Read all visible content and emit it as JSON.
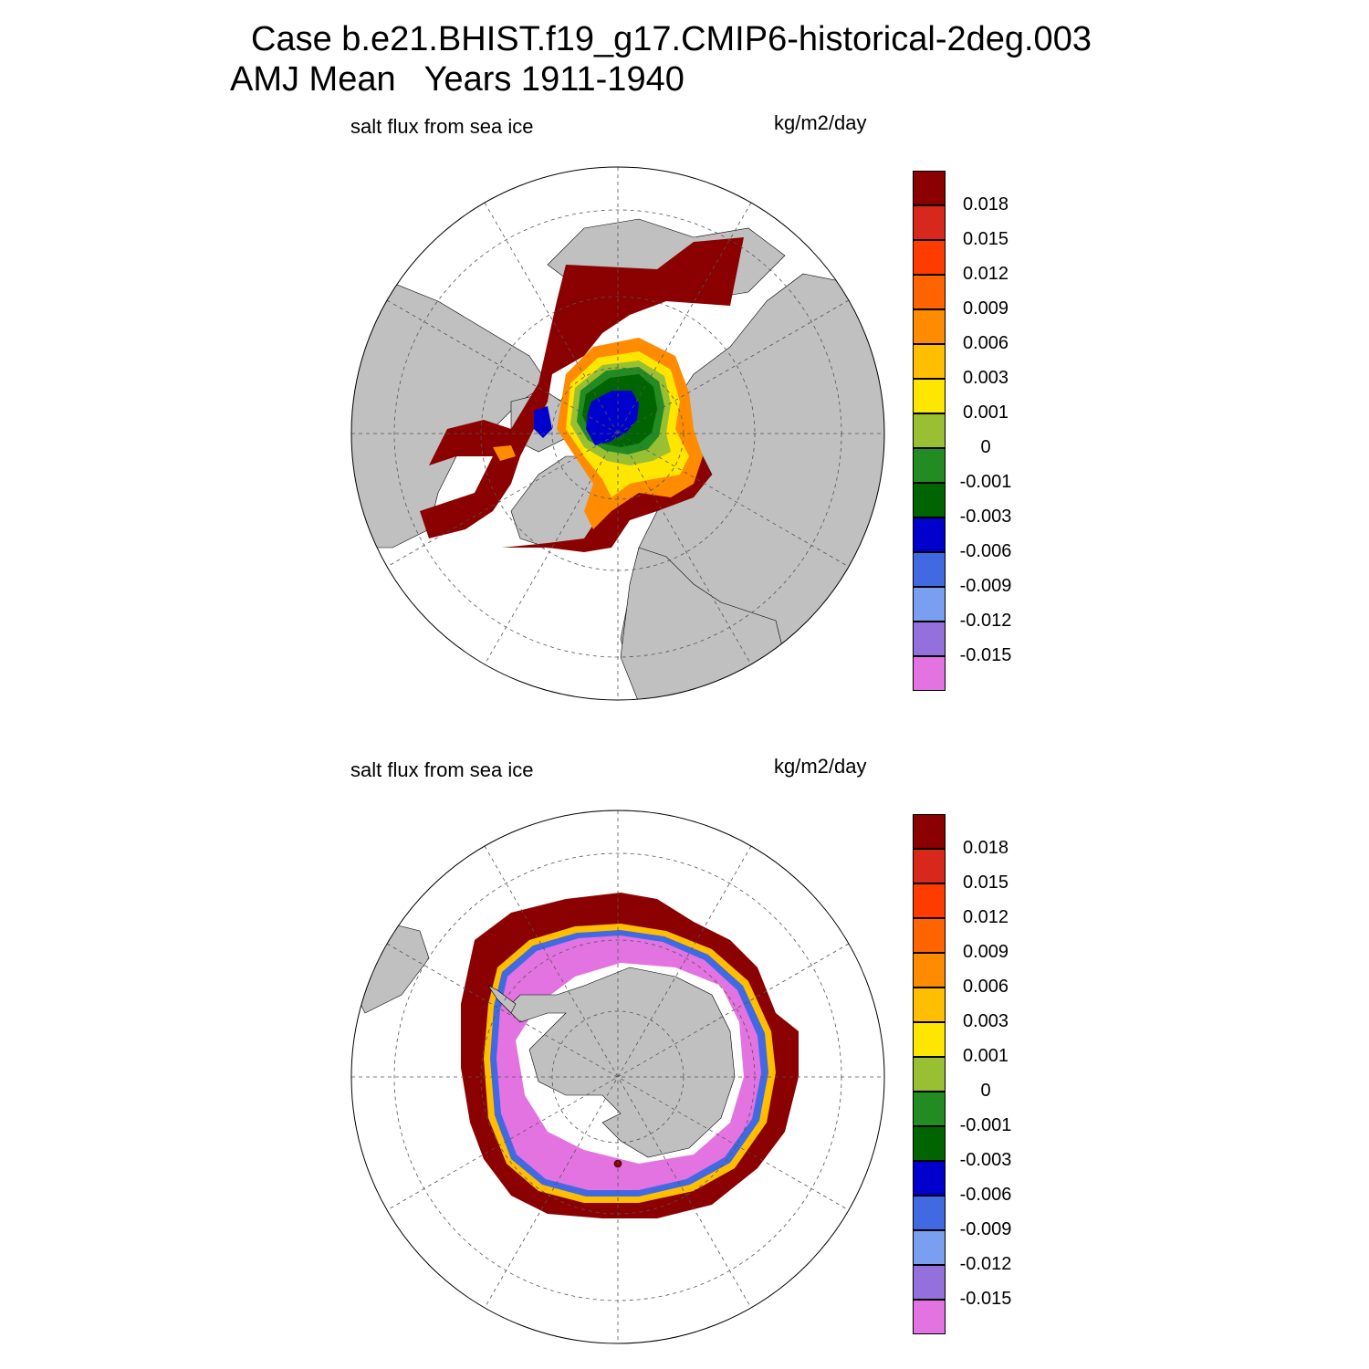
{
  "title": {
    "line1": "Case b.e21.BHIST.f19_g17.CMIP6-historical-2deg.003",
    "line2": "AMJ Mean   Years 1911-1940"
  },
  "panels": [
    {
      "id": "north",
      "variable": "salt flux from sea ice",
      "units": "kg/m2/day"
    },
    {
      "id": "south",
      "variable": "salt flux from sea ice",
      "units": "kg/m2/day"
    }
  ],
  "colorbar": {
    "labels": [
      "0.018",
      "0.015",
      "0.012",
      "0.009",
      "0.006",
      "0.003",
      "0.001",
      "0",
      "-0.001",
      "-0.003",
      "-0.006",
      "-0.009",
      "-0.012",
      "-0.015"
    ],
    "colors_top_to_bottom": [
      "#8b0000",
      "#d8281c",
      "#ff3c00",
      "#ff6400",
      "#ff8c00",
      "#ffbf00",
      "#ffe600",
      "#99bf33",
      "#228b22",
      "#006400",
      "#0000cd",
      "#4169e1",
      "#7b9ff0",
      "#9370db",
      "#e273e0"
    ]
  },
  "colors": {
    "land": "#c0c0c0",
    "background": "#ffffff",
    "grid": "#555555"
  }
}
